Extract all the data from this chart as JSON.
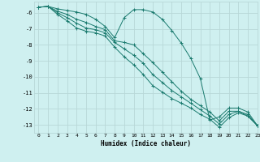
{
  "xlabel": "Humidex (Indice chaleur)",
  "bg_color": "#cff0f0",
  "line_color": "#1a7a6e",
  "grid_color": "#b8d8d8",
  "xlim": [
    -0.5,
    23
  ],
  "ylim": [
    -13.5,
    -5.3
  ],
  "yticks": [
    -6,
    -7,
    -8,
    -9,
    -10,
    -11,
    -12,
    -13
  ],
  "xticks": [
    0,
    1,
    2,
    3,
    4,
    5,
    6,
    7,
    8,
    9,
    10,
    11,
    12,
    13,
    14,
    15,
    16,
    17,
    18,
    19,
    20,
    21,
    22,
    23
  ],
  "series": [
    {
      "x": [
        0,
        1,
        2,
        3,
        4,
        5,
        6,
        7,
        8,
        9,
        10,
        11,
        12,
        13,
        14,
        15,
        16,
        17,
        18,
        19,
        20,
        21,
        22,
        23
      ],
      "y": [
        -5.65,
        -5.6,
        -5.75,
        -5.85,
        -5.95,
        -6.1,
        -6.4,
        -6.85,
        -7.55,
        -6.3,
        -5.8,
        -5.8,
        -5.95,
        -6.4,
        -7.1,
        -7.9,
        -8.85,
        -10.1,
        -12.7,
        -12.5,
        -11.95,
        -11.95,
        -12.2,
        -13.05
      ]
    },
    {
      "x": [
        0,
        1,
        2,
        3,
        4,
        5,
        6,
        7,
        8,
        9,
        10,
        11,
        12,
        13,
        14,
        15,
        16,
        17,
        18,
        19,
        20,
        21,
        22,
        23
      ],
      "y": [
        -5.65,
        -5.6,
        -5.9,
        -6.1,
        -6.4,
        -6.6,
        -6.85,
        -7.05,
        -7.75,
        -7.85,
        -8.0,
        -8.55,
        -9.1,
        -9.7,
        -10.3,
        -10.9,
        -11.4,
        -11.8,
        -12.2,
        -12.75,
        -12.15,
        -12.15,
        -12.35,
        -13.05
      ]
    },
    {
      "x": [
        0,
        1,
        2,
        3,
        4,
        5,
        6,
        7,
        8,
        9,
        10,
        11,
        12,
        13,
        14,
        15,
        16,
        17,
        18,
        19,
        20,
        21,
        22,
        23
      ],
      "y": [
        -5.65,
        -5.6,
        -6.0,
        -6.3,
        -6.65,
        -6.95,
        -7.05,
        -7.25,
        -7.85,
        -8.25,
        -8.65,
        -9.15,
        -9.85,
        -10.35,
        -10.85,
        -11.25,
        -11.65,
        -12.05,
        -12.45,
        -12.95,
        -12.35,
        -12.15,
        -12.45,
        -13.05
      ]
    },
    {
      "x": [
        0,
        1,
        2,
        3,
        4,
        5,
        6,
        7,
        8,
        9,
        10,
        11,
        12,
        13,
        14,
        15,
        16,
        17,
        18,
        19,
        20,
        21,
        22,
        23
      ],
      "y": [
        -5.65,
        -5.6,
        -6.1,
        -6.5,
        -6.95,
        -7.15,
        -7.25,
        -7.45,
        -8.15,
        -8.75,
        -9.25,
        -9.85,
        -10.55,
        -10.95,
        -11.35,
        -11.65,
        -11.95,
        -12.35,
        -12.65,
        -13.15,
        -12.55,
        -12.25,
        -12.45,
        -13.05
      ]
    }
  ]
}
